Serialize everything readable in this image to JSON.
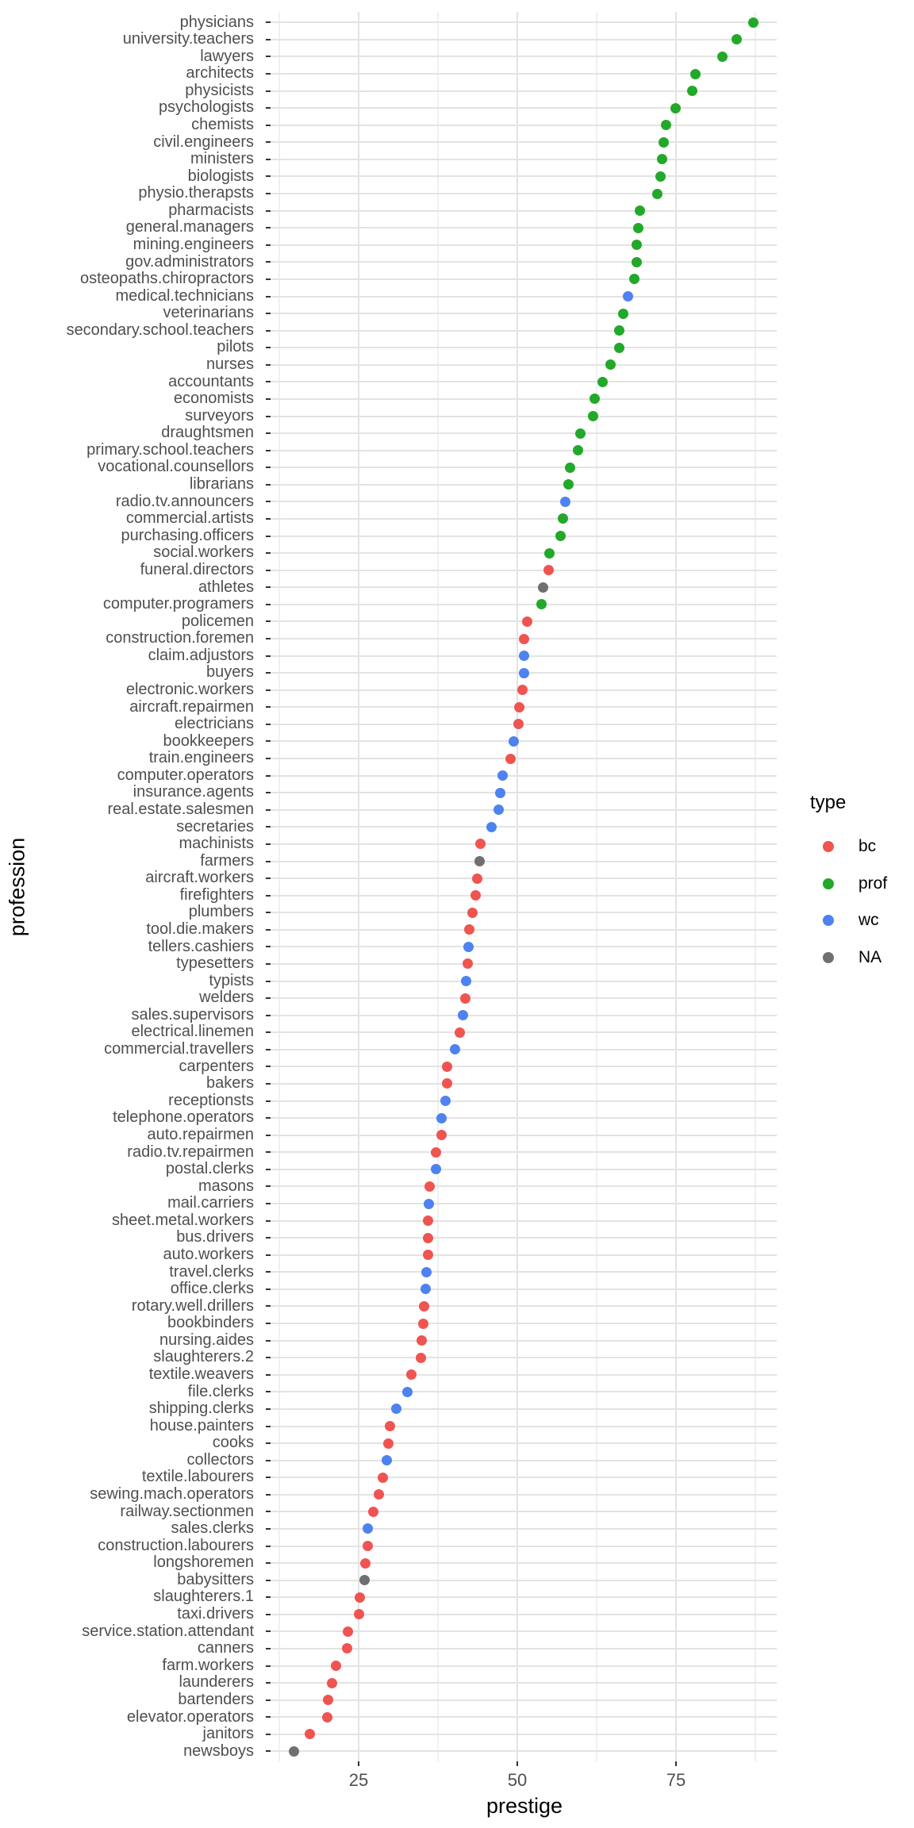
{
  "figure": {
    "background": "#ffffff"
  },
  "axes": {
    "x_title": "prestige",
    "y_title": "profession",
    "x_tick_labels": [
      "25",
      "50",
      "75"
    ]
  },
  "legend": {
    "title": "type",
    "items": [
      {
        "label": "bc",
        "color": "#f05450"
      },
      {
        "label": "prof",
        "color": "#22a82a"
      },
      {
        "label": "wc",
        "color": "#4d82f0"
      },
      {
        "label": "NA",
        "color": "#707070"
      }
    ]
  },
  "chart_data": {
    "type": "scatter",
    "subtype": "horizontal-dot-plot",
    "title": "",
    "xlabel": "prestige",
    "ylabel": "profession",
    "xlim": [
      11.18,
      90.82
    ],
    "x_major_ticks": [
      25,
      50,
      75
    ],
    "x_minor_gridlines": [
      12.5,
      37.5,
      62.5,
      87.5
    ],
    "grid": "major and minor vertical, one horizontal gridline per category",
    "legend_position": "right",
    "color_by": "type",
    "colors": {
      "bc": "#f05450",
      "prof": "#22a82a",
      "wc": "#4d82f0",
      "NA": "#707070"
    },
    "points": [
      {
        "profession": "physicians",
        "prestige": 87.2,
        "type": "prof"
      },
      {
        "profession": "university.teachers",
        "prestige": 84.6,
        "type": "prof"
      },
      {
        "profession": "lawyers",
        "prestige": 82.3,
        "type": "prof"
      },
      {
        "profession": "architects",
        "prestige": 78.1,
        "type": "prof"
      },
      {
        "profession": "physicists",
        "prestige": 77.6,
        "type": "prof"
      },
      {
        "profession": "psychologists",
        "prestige": 74.9,
        "type": "prof"
      },
      {
        "profession": "chemists",
        "prestige": 73.5,
        "type": "prof"
      },
      {
        "profession": "civil.engineers",
        "prestige": 73.1,
        "type": "prof"
      },
      {
        "profession": "ministers",
        "prestige": 72.8,
        "type": "prof"
      },
      {
        "profession": "biologists",
        "prestige": 72.6,
        "type": "prof"
      },
      {
        "profession": "physio.therapsts",
        "prestige": 72.1,
        "type": "prof"
      },
      {
        "profession": "pharmacists",
        "prestige": 69.3,
        "type": "prof"
      },
      {
        "profession": "general.managers",
        "prestige": 69.1,
        "type": "prof"
      },
      {
        "profession": "mining.engineers",
        "prestige": 68.8,
        "type": "prof"
      },
      {
        "profession": "gov.administrators",
        "prestige": 68.8,
        "type": "prof"
      },
      {
        "profession": "osteopaths.chiropractors",
        "prestige": 68.4,
        "type": "prof"
      },
      {
        "profession": "medical.technicians",
        "prestige": 67.5,
        "type": "wc"
      },
      {
        "profession": "veterinarians",
        "prestige": 66.7,
        "type": "prof"
      },
      {
        "profession": "secondary.school.teachers",
        "prestige": 66.1,
        "type": "prof"
      },
      {
        "profession": "pilots",
        "prestige": 66.1,
        "type": "prof"
      },
      {
        "profession": "nurses",
        "prestige": 64.7,
        "type": "prof"
      },
      {
        "profession": "accountants",
        "prestige": 63.4,
        "type": "prof"
      },
      {
        "profession": "economists",
        "prestige": 62.2,
        "type": "prof"
      },
      {
        "profession": "surveyors",
        "prestige": 62.0,
        "type": "prof"
      },
      {
        "profession": "draughtsmen",
        "prestige": 60.0,
        "type": "prof"
      },
      {
        "profession": "primary.school.teachers",
        "prestige": 59.6,
        "type": "prof"
      },
      {
        "profession": "vocational.counsellors",
        "prestige": 58.3,
        "type": "prof"
      },
      {
        "profession": "librarians",
        "prestige": 58.1,
        "type": "prof"
      },
      {
        "profession": "radio.tv.announcers",
        "prestige": 57.6,
        "type": "wc"
      },
      {
        "profession": "commercial.artists",
        "prestige": 57.2,
        "type": "prof"
      },
      {
        "profession": "purchasing.officers",
        "prestige": 56.8,
        "type": "prof"
      },
      {
        "profession": "social.workers",
        "prestige": 55.1,
        "type": "prof"
      },
      {
        "profession": "funeral.directors",
        "prestige": 54.9,
        "type": "bc"
      },
      {
        "profession": "athletes",
        "prestige": 54.1,
        "type": "NA"
      },
      {
        "profession": "computer.programers",
        "prestige": 53.8,
        "type": "prof"
      },
      {
        "profession": "policemen",
        "prestige": 51.6,
        "type": "bc"
      },
      {
        "profession": "construction.foremen",
        "prestige": 51.1,
        "type": "bc"
      },
      {
        "profession": "claim.adjustors",
        "prestige": 51.1,
        "type": "wc"
      },
      {
        "profession": "buyers",
        "prestige": 51.1,
        "type": "wc"
      },
      {
        "profession": "electronic.workers",
        "prestige": 50.8,
        "type": "bc"
      },
      {
        "profession": "aircraft.repairmen",
        "prestige": 50.3,
        "type": "bc"
      },
      {
        "profession": "electricians",
        "prestige": 50.2,
        "type": "bc"
      },
      {
        "profession": "bookkeepers",
        "prestige": 49.4,
        "type": "wc"
      },
      {
        "profession": "train.engineers",
        "prestige": 48.9,
        "type": "bc"
      },
      {
        "profession": "computer.operators",
        "prestige": 47.7,
        "type": "wc"
      },
      {
        "profession": "insurance.agents",
        "prestige": 47.3,
        "type": "wc"
      },
      {
        "profession": "real.estate.salesmen",
        "prestige": 47.1,
        "type": "wc"
      },
      {
        "profession": "secretaries",
        "prestige": 46.0,
        "type": "wc"
      },
      {
        "profession": "machinists",
        "prestige": 44.2,
        "type": "bc"
      },
      {
        "profession": "farmers",
        "prestige": 44.1,
        "type": "NA"
      },
      {
        "profession": "aircraft.workers",
        "prestige": 43.7,
        "type": "bc"
      },
      {
        "profession": "firefighters",
        "prestige": 43.5,
        "type": "bc"
      },
      {
        "profession": "plumbers",
        "prestige": 42.9,
        "type": "bc"
      },
      {
        "profession": "tool.die.makers",
        "prestige": 42.5,
        "type": "bc"
      },
      {
        "profession": "tellers.cashiers",
        "prestige": 42.3,
        "type": "wc"
      },
      {
        "profession": "typesetters",
        "prestige": 42.2,
        "type": "bc"
      },
      {
        "profession": "typists",
        "prestige": 41.9,
        "type": "wc"
      },
      {
        "profession": "welders",
        "prestige": 41.8,
        "type": "bc"
      },
      {
        "profession": "sales.supervisors",
        "prestige": 41.5,
        "type": "wc"
      },
      {
        "profession": "electrical.linemen",
        "prestige": 40.9,
        "type": "bc"
      },
      {
        "profession": "commercial.travellers",
        "prestige": 40.2,
        "type": "wc"
      },
      {
        "profession": "carpenters",
        "prestige": 38.9,
        "type": "bc"
      },
      {
        "profession": "bakers",
        "prestige": 38.9,
        "type": "bc"
      },
      {
        "profession": "receptionsts",
        "prestige": 38.7,
        "type": "wc"
      },
      {
        "profession": "telephone.operators",
        "prestige": 38.1,
        "type": "wc"
      },
      {
        "profession": "auto.repairmen",
        "prestige": 38.1,
        "type": "bc"
      },
      {
        "profession": "radio.tv.repairmen",
        "prestige": 37.2,
        "type": "bc"
      },
      {
        "profession": "postal.clerks",
        "prestige": 37.2,
        "type": "wc"
      },
      {
        "profession": "masons",
        "prestige": 36.2,
        "type": "bc"
      },
      {
        "profession": "mail.carriers",
        "prestige": 36.1,
        "type": "wc"
      },
      {
        "profession": "sheet.metal.workers",
        "prestige": 35.9,
        "type": "bc"
      },
      {
        "profession": "bus.drivers",
        "prestige": 35.9,
        "type": "bc"
      },
      {
        "profession": "auto.workers",
        "prestige": 35.9,
        "type": "bc"
      },
      {
        "profession": "travel.clerks",
        "prestige": 35.7,
        "type": "wc"
      },
      {
        "profession": "office.clerks",
        "prestige": 35.6,
        "type": "wc"
      },
      {
        "profession": "rotary.well.drillers",
        "prestige": 35.3,
        "type": "bc"
      },
      {
        "profession": "bookbinders",
        "prestige": 35.2,
        "type": "bc"
      },
      {
        "profession": "nursing.aides",
        "prestige": 34.9,
        "type": "bc"
      },
      {
        "profession": "slaughterers.2",
        "prestige": 34.8,
        "type": "bc"
      },
      {
        "profession": "textile.weavers",
        "prestige": 33.3,
        "type": "bc"
      },
      {
        "profession": "file.clerks",
        "prestige": 32.7,
        "type": "wc"
      },
      {
        "profession": "shipping.clerks",
        "prestige": 30.9,
        "type": "wc"
      },
      {
        "profession": "house.painters",
        "prestige": 29.9,
        "type": "bc"
      },
      {
        "profession": "cooks",
        "prestige": 29.7,
        "type": "bc"
      },
      {
        "profession": "collectors",
        "prestige": 29.4,
        "type": "wc"
      },
      {
        "profession": "textile.labourers",
        "prestige": 28.8,
        "type": "bc"
      },
      {
        "profession": "sewing.mach.operators",
        "prestige": 28.2,
        "type": "bc"
      },
      {
        "profession": "railway.sectionmen",
        "prestige": 27.3,
        "type": "bc"
      },
      {
        "profession": "sales.clerks",
        "prestige": 26.5,
        "type": "wc"
      },
      {
        "profession": "construction.labourers",
        "prestige": 26.5,
        "type": "bc"
      },
      {
        "profession": "longshoremen",
        "prestige": 26.1,
        "type": "bc"
      },
      {
        "profession": "babysitters",
        "prestige": 25.9,
        "type": "NA"
      },
      {
        "profession": "slaughterers.1",
        "prestige": 25.2,
        "type": "bc"
      },
      {
        "profession": "taxi.drivers",
        "prestige": 25.1,
        "type": "bc"
      },
      {
        "profession": "service.station.attendant",
        "prestige": 23.3,
        "type": "bc"
      },
      {
        "profession": "canners",
        "prestige": 23.2,
        "type": "bc"
      },
      {
        "profession": "farm.workers",
        "prestige": 21.5,
        "type": "bc"
      },
      {
        "profession": "launderers",
        "prestige": 20.8,
        "type": "bc"
      },
      {
        "profession": "bartenders",
        "prestige": 20.2,
        "type": "bc"
      },
      {
        "profession": "elevator.operators",
        "prestige": 20.1,
        "type": "bc"
      },
      {
        "profession": "janitors",
        "prestige": 17.3,
        "type": "bc"
      },
      {
        "profession": "newsboys",
        "prestige": 14.8,
        "type": "NA"
      }
    ]
  }
}
